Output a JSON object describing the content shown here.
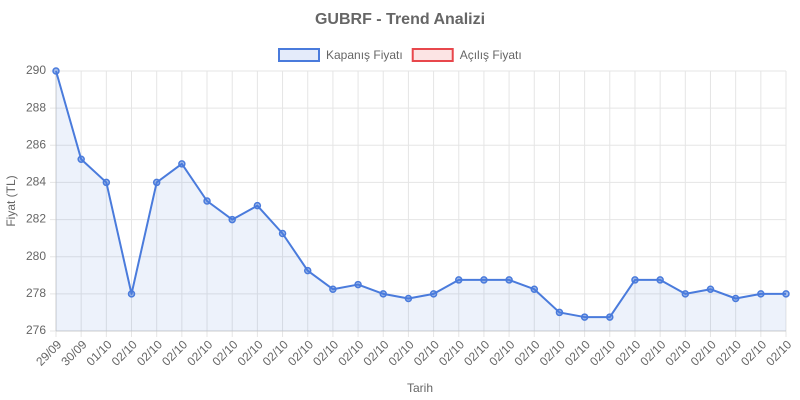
{
  "chart_data": {
    "type": "line",
    "title": "GUBRF - Trend Analizi",
    "x_label": "Tarih",
    "y_label": "Fiyat (TL)",
    "categories": [
      "29/09",
      "30/09",
      "01/10",
      "02/10",
      "02/10",
      "02/10",
      "02/10",
      "02/10",
      "02/10",
      "02/10",
      "02/10",
      "02/10",
      "02/10",
      "02/10",
      "02/10",
      "02/10",
      "02/10",
      "02/10",
      "02/10",
      "02/10",
      "02/10",
      "02/10",
      "02/10",
      "02/10",
      "02/10",
      "02/10",
      "02/10",
      "02/10",
      "02/10",
      "02/10"
    ],
    "series": [
      {
        "name": "Kapanış Fiyatı",
        "color": "#4a7bdc",
        "fill": true,
        "values": [
          290,
          285.25,
          284,
          278,
          284,
          285,
          283,
          282,
          282.75,
          281.25,
          279.25,
          278.25,
          278.5,
          278,
          277.75,
          278,
          278.75,
          278.75,
          278.75,
          278.25,
          277,
          276.75,
          276.75,
          278.75,
          278.75,
          278,
          278.25,
          277.75,
          278,
          278
        ]
      },
      {
        "name": "Açılış Fiyatı",
        "color": "#e8474c",
        "fill": false,
        "values": [
          null,
          null,
          null,
          null,
          null,
          null,
          null,
          null,
          null,
          null,
          null,
          null,
          null,
          null,
          null,
          null,
          null,
          null,
          null,
          null,
          null,
          null,
          null,
          null,
          null,
          null,
          null,
          null,
          null,
          null
        ]
      }
    ],
    "ylim": [
      276,
      290
    ],
    "yticks": [
      276,
      278,
      280,
      282,
      284,
      286,
      288,
      290
    ],
    "grid": true,
    "legend": "top"
  }
}
